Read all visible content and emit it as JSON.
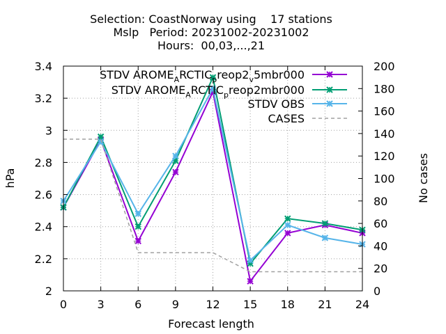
{
  "chart_data": {
    "type": "line",
    "title_lines": [
      "Selection: CoastNorway using    17 stations",
      "Mslp   Period: 20231002-20231002",
      "Hours:  00,03,...,21"
    ],
    "xlabel": "Forecast length",
    "ylabel": "hPa",
    "y2label": "No cases",
    "x": [
      0,
      3,
      6,
      9,
      12,
      15,
      18,
      21,
      24
    ],
    "xlim": [
      0,
      24
    ],
    "ylim": [
      2,
      3.4
    ],
    "y2lim": [
      0,
      200
    ],
    "x_ticks": [
      "0",
      "3",
      "6",
      "9",
      "12",
      "15",
      "18",
      "21",
      "24"
    ],
    "y_ticks": [
      "2",
      "2.2",
      "2.4",
      "2.6",
      "2.8",
      "3",
      "3.2",
      "3.4"
    ],
    "y2_ticks": [
      "0",
      "20",
      "40",
      "60",
      "80",
      "100",
      "120",
      "140",
      "160",
      "180",
      "200"
    ],
    "grid": true,
    "legend_position": "top-right",
    "series": [
      {
        "legend_parts": [
          "STDV AROME",
          "A",
          "RCTIC",
          "p",
          "reop2",
          "v",
          "5mbr000"
        ],
        "color": "#9400d3",
        "marker": "x",
        "axis": "y",
        "values": [
          2.52,
          2.94,
          2.31,
          2.74,
          3.24,
          2.06,
          2.36,
          2.41,
          2.36
        ]
      },
      {
        "legend_parts": [
          "STDV AROME",
          "A",
          "RCTIC",
          "p",
          "reop2mbr000"
        ],
        "color": "#009e73",
        "marker": "x",
        "axis": "y",
        "values": [
          2.52,
          2.96,
          2.4,
          2.81,
          3.33,
          2.17,
          2.45,
          2.42,
          2.38
        ]
      },
      {
        "name": "STDV OBS",
        "color": "#56b4e9",
        "marker": "x",
        "axis": "y",
        "values": [
          2.56,
          2.93,
          2.48,
          2.84,
          3.26,
          2.19,
          2.41,
          2.33,
          2.29
        ]
      },
      {
        "name": "CASES",
        "color": "#a0a0a0",
        "marker": "none",
        "dashed": true,
        "axis": "y2",
        "values": [
          135,
          135,
          34,
          34,
          34,
          17,
          17,
          17,
          17
        ]
      }
    ]
  }
}
